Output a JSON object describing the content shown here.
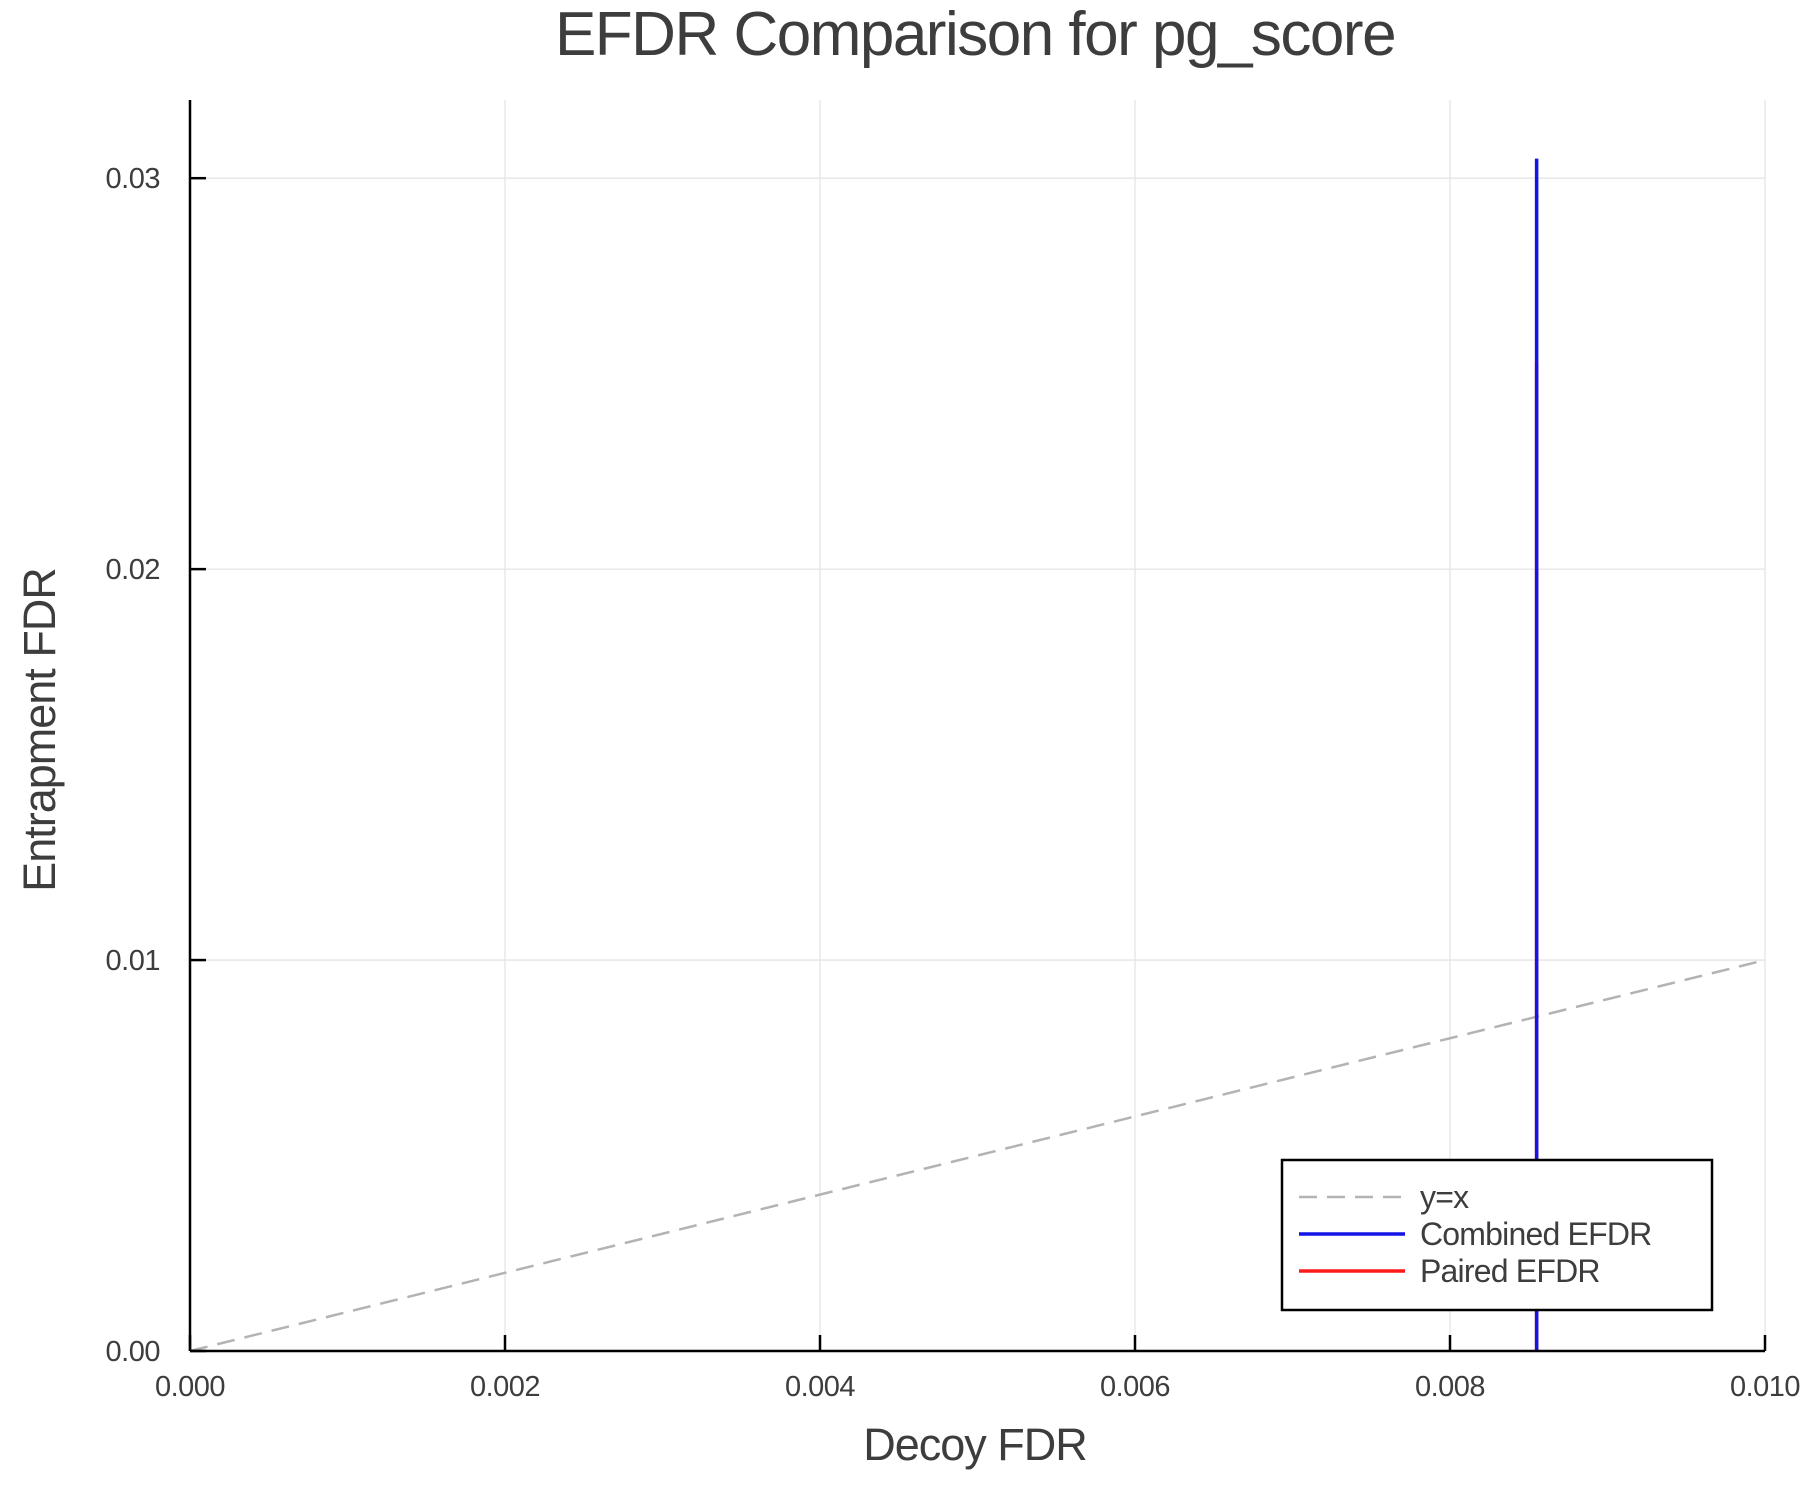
{
  "chart_data": {
    "type": "line",
    "title": "EFDR Comparison for pg_score",
    "xlabel": "Decoy FDR",
    "ylabel": "Entrapment FDR",
    "xlim": [
      0.0,
      0.01
    ],
    "ylim": [
      0.0,
      0.032
    ],
    "x_ticks": [
      0.0,
      0.002,
      0.004,
      0.006,
      0.008,
      0.01
    ],
    "x_tick_labels": [
      "0.000",
      "0.002",
      "0.004",
      "0.006",
      "0.008",
      "0.010"
    ],
    "y_ticks": [
      0.0,
      0.01,
      0.02,
      0.03
    ],
    "y_tick_labels": [
      "0.00",
      "0.01",
      "0.02",
      "0.03"
    ],
    "grid": true,
    "legend_position": "bottom-right",
    "series": [
      {
        "name": "y=x",
        "color": "#b3b3b3",
        "dash": true,
        "x": [
          0.0,
          0.01
        ],
        "y": [
          0.0,
          0.01
        ]
      },
      {
        "name": "Combined EFDR",
        "color": "#1414e6",
        "dash": false,
        "x": [
          0.00855,
          0.00855
        ],
        "y": [
          0.0,
          0.0305
        ]
      },
      {
        "name": "Paired EFDR",
        "color": "#ff1a1a",
        "dash": false,
        "x": [
          0.00855,
          0.00855
        ],
        "y": [
          0.0,
          0.0253
        ]
      }
    ]
  }
}
